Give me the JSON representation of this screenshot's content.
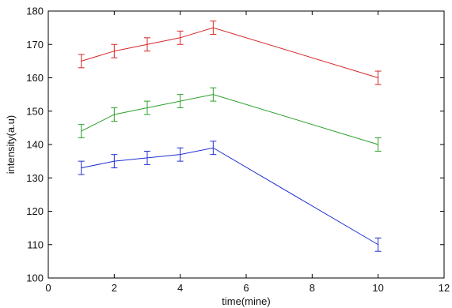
{
  "chart_data": {
    "type": "line",
    "title": "",
    "xlabel": "time(mine)",
    "ylabel": "intensity(a.u)",
    "xlim": [
      0,
      12
    ],
    "ylim": [
      100,
      180
    ],
    "x_ticks": [
      0,
      2,
      4,
      6,
      8,
      10,
      12
    ],
    "y_ticks": [
      100,
      110,
      120,
      130,
      140,
      150,
      160,
      170,
      180
    ],
    "x_tick_labels": [
      "0",
      "2",
      "4",
      "6",
      "8",
      "10",
      "12"
    ],
    "y_tick_labels": [
      "100",
      "110",
      "120",
      "130",
      "140",
      "150",
      "160",
      "170",
      "180"
    ],
    "grid": false,
    "legend": "none",
    "error_bars": true,
    "series": [
      {
        "color": "#d62728",
        "x": [
          1,
          2,
          3,
          4,
          5,
          10
        ],
        "y": [
          165,
          168,
          170,
          172,
          175,
          160
        ],
        "err": [
          2,
          2,
          2,
          2,
          2,
          2
        ]
      },
      {
        "color": "#2ca02c",
        "x": [
          1,
          2,
          3,
          4,
          5,
          10
        ],
        "y": [
          144,
          149,
          151,
          153,
          155,
          140
        ],
        "err": [
          2,
          2,
          2,
          2,
          2,
          2
        ]
      },
      {
        "color": "#1f2fd1",
        "x": [
          1,
          2,
          3,
          4,
          5,
          10
        ],
        "y": [
          133,
          135,
          136,
          137,
          139,
          110
        ],
        "err": [
          2,
          2,
          2,
          2,
          2,
          2
        ]
      }
    ]
  }
}
